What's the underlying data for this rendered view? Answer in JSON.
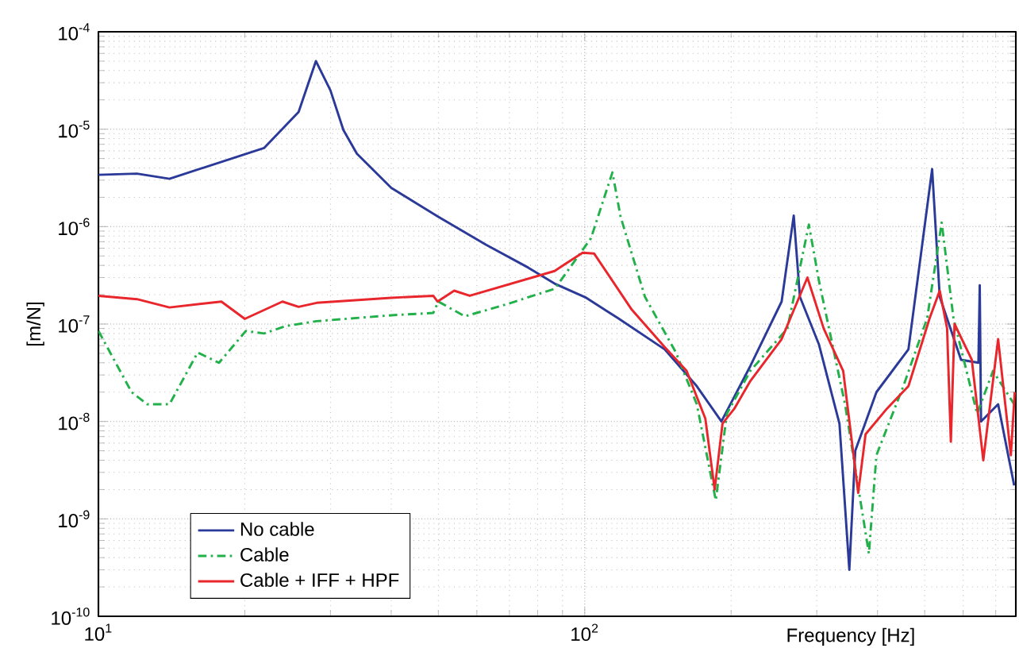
{
  "chart_data": {
    "type": "line",
    "xlabel": "Frequency [Hz]",
    "ylabel": "[m/N]",
    "log": "xy",
    "grid": true,
    "legend": "bottom left",
    "xlim": [
      10,
      770
    ],
    "ylim": [
      1e-10,
      0.0001
    ],
    "xticks": [
      {
        "value": 10,
        "label": "10$^{1}$"
      },
      {
        "value": 100,
        "label": "10$^{2}$"
      }
    ],
    "yticks": [
      {
        "value": 1e-10,
        "label": "10$^{-10}$"
      },
      {
        "value": 1e-09,
        "label": "10$^{-9}$"
      },
      {
        "value": 1e-08,
        "label": "10$^{-8}$"
      },
      {
        "value": 1e-07,
        "label": "10$^{-7}$"
      },
      {
        "value": 1e-06,
        "label": "10$^{-6}$"
      },
      {
        "value": 1e-05,
        "label": "10$^{-5}$"
      },
      {
        "value": 0.0001,
        "label": "10$^{-4}$"
      }
    ],
    "series": [
      {
        "name": "No cable",
        "color": "#2b3a98",
        "line_style": "solid",
        "x": [
          10,
          12,
          14,
          21.9,
          25.8,
          28,
          30,
          31.9,
          34,
          40,
          50,
          62.7,
          76.5,
          86.7,
          100.7,
          117,
          146,
          170,
          191,
          219,
          254,
          269,
          277,
          303,
          334,
          350,
          360,
          398,
          463,
          518,
          537,
          594,
          645,
          649,
          653,
          708,
          764
        ],
        "values": [
          3.4e-06,
          3.5e-06,
          3.1e-06,
          6.4e-06,
          1.5e-05,
          5e-05,
          2.5e-05,
          9.8e-06,
          5.6e-06,
          2.5e-06,
          1.26e-06,
          6.5e-07,
          3.8e-07,
          2.6e-07,
          1.86e-07,
          1.15e-07,
          5.5e-08,
          2.3e-08,
          1e-08,
          3.7e-08,
          1.7e-07,
          1.3e-06,
          1.9e-07,
          6.2e-08,
          9.5e-09,
          3e-10,
          5e-09,
          2e-08,
          5.5e-08,
          3.9e-06,
          1.9e-07,
          4.3e-08,
          4e-08,
          2.5e-07,
          1e-08,
          1.5e-08,
          2.2e-09
        ]
      },
      {
        "name": "Cable",
        "color": "#22b04a",
        "line_style": "dashdot",
        "x": [
          10,
          11.7,
          12.6,
          14,
          16,
          17.7,
          20.1,
          21.9,
          24.2,
          28.1,
          40,
          48.8,
          50,
          56.7,
          69.2,
          86.7,
          91,
          103,
          114,
          118.5,
          133,
          154,
          170,
          186,
          196,
          219,
          261,
          289,
          303,
          343,
          384,
          398,
          452,
          506,
          542,
          573,
          641,
          691,
          764
        ],
        "values": [
          8.5e-08,
          2e-08,
          1.5e-08,
          1.5e-08,
          5.1e-08,
          4e-08,
          8.5e-08,
          8e-08,
          9.5e-08,
          1.07e-07,
          1.23e-07,
          1.3e-07,
          1.7e-07,
          1.2e-07,
          1.6e-07,
          2.3e-07,
          3.2e-07,
          7.6e-07,
          3.6e-06,
          1.26e-06,
          1.9e-07,
          5.1e-08,
          1.5e-08,
          1.55e-09,
          1.2e-08,
          3.3e-08,
          9e-08,
          1.05e-06,
          2.8e-07,
          1.5e-08,
          4.4e-10,
          4.5e-09,
          2.3e-08,
          1.15e-07,
          1.1e-06,
          1.15e-07,
          1.2e-08,
          3.3e-08,
          1.5e-08
        ]
      },
      {
        "name": "Cable + IFF + HPF",
        "color": "#e8262c",
        "line_style": "solid",
        "x": [
          10,
          12,
          14,
          17.9,
          20,
          23.9,
          25.8,
          28.1,
          40,
          48.8,
          49.8,
          53.9,
          58,
          86.7,
          91,
          99,
          104.5,
          125,
          146,
          162,
          177,
          185,
          192,
          203,
          219,
          254,
          287,
          310,
          340,
          365,
          378,
          418,
          463,
          512,
          537,
          556,
          566,
          576,
          625,
          660,
          708,
          752,
          766
        ],
        "values": [
          1.95e-07,
          1.8e-07,
          1.48e-07,
          1.7e-07,
          1.13e-07,
          1.7e-07,
          1.5e-07,
          1.65e-07,
          1.86e-07,
          1.95e-07,
          1.7e-07,
          2.2e-07,
          1.95e-07,
          3.5e-07,
          4.1e-07,
          5.4e-07,
          5.3e-07,
          1.4e-07,
          5.8e-08,
          3.3e-08,
          1.07e-08,
          2e-09,
          9.5e-09,
          1.35e-08,
          2.6e-08,
          7e-08,
          3e-07,
          9e-08,
          3.3e-08,
          1.85e-09,
          7.4e-09,
          1.35e-08,
          2.3e-08,
          1.15e-07,
          2.2e-07,
          9e-08,
          6.2e-09,
          1e-07,
          4.3e-08,
          4e-09,
          7e-08,
          4.5e-09,
          2e-08
        ]
      }
    ]
  }
}
